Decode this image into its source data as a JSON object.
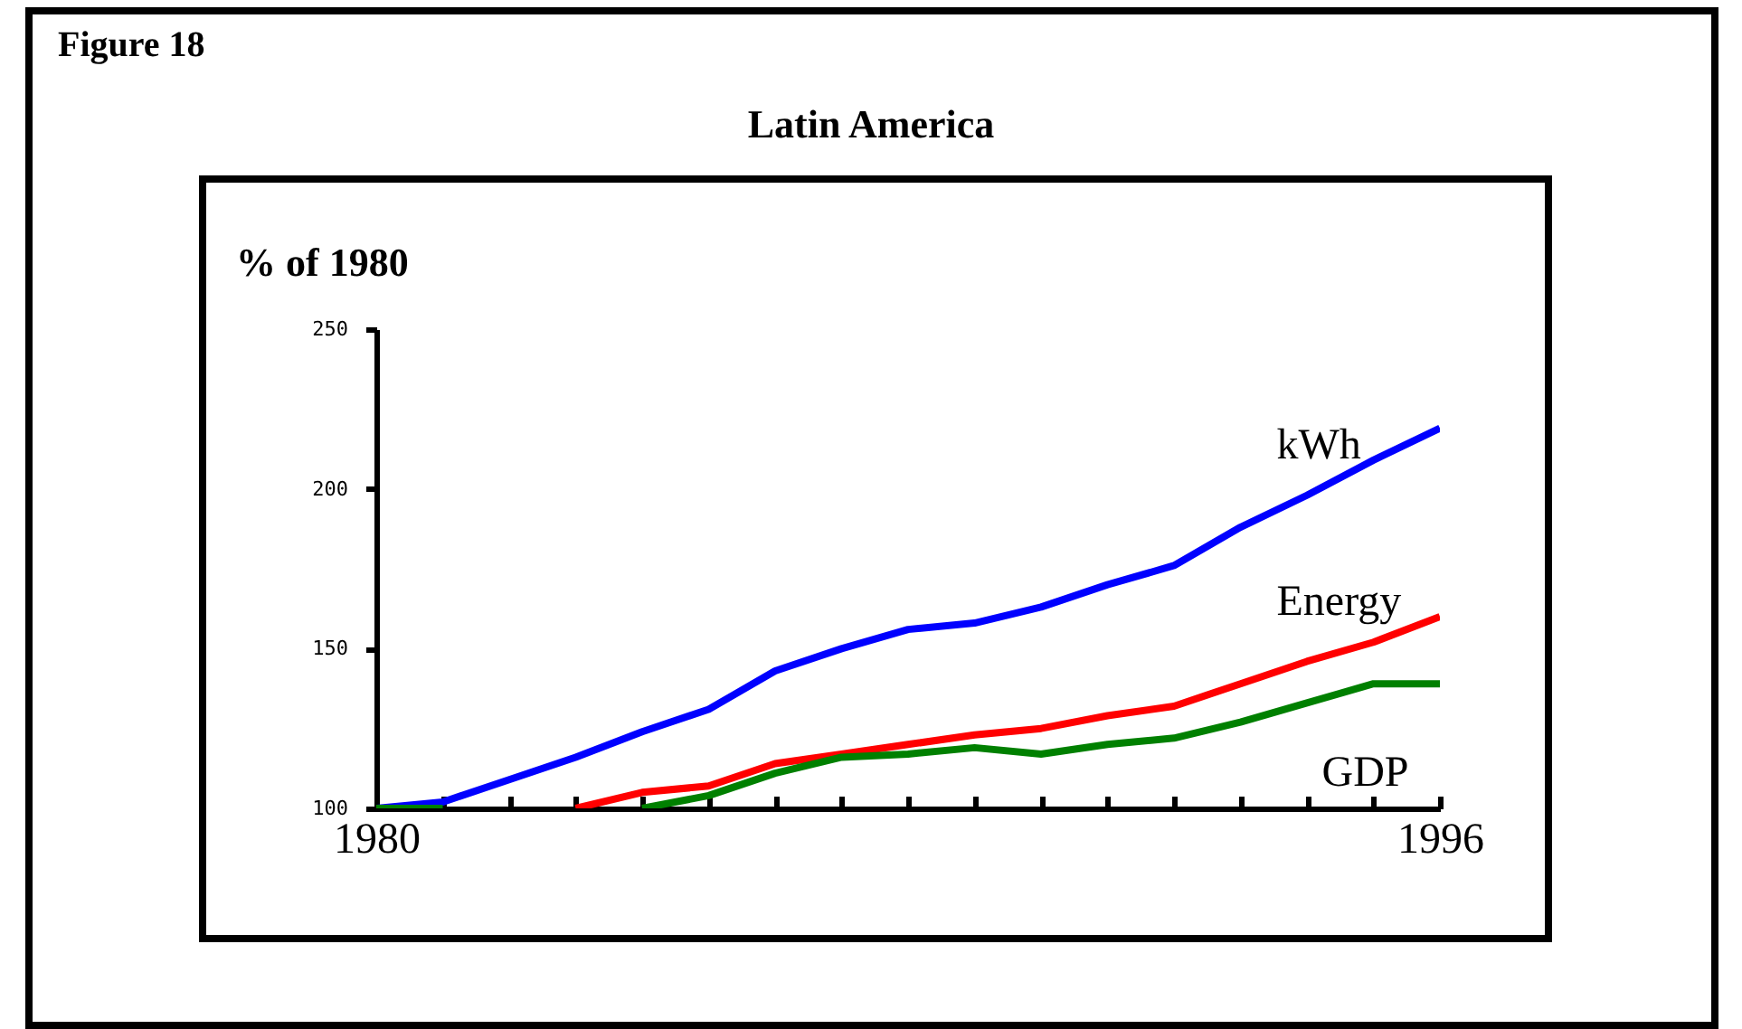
{
  "chart_data": {
    "type": "line",
    "title": "Latin America",
    "ylabel": "% of 1980",
    "annotations": [
      "Figure 18"
    ],
    "x": [
      1980,
      1981,
      1982,
      1983,
      1984,
      1985,
      1986,
      1987,
      1988,
      1989,
      1990,
      1991,
      1992,
      1993,
      1994,
      1995,
      1996
    ],
    "series": [
      {
        "name": "kWh",
        "color": "#0000ff",
        "values": [
          100,
          102,
          109,
          116,
          124,
          131,
          143,
          150,
          156,
          158,
          163,
          170,
          176,
          188,
          198,
          209,
          219
        ]
      },
      {
        "name": "Energy",
        "color": "#ff0000",
        "values": [
          null,
          null,
          null,
          100,
          105,
          107,
          114,
          117,
          120,
          123,
          125,
          129,
          132,
          139,
          146,
          152,
          160
        ]
      },
      {
        "name": "GDP",
        "color": "#008000",
        "values": [
          100,
          100,
          null,
          null,
          100,
          104,
          111,
          116,
          117,
          119,
          117,
          120,
          122,
          127,
          133,
          139,
          139
        ]
      }
    ],
    "xlim": [
      1980,
      1996
    ],
    "xticks": [
      1980,
      {
        "value": 1981,
        "label": null
      },
      {
        "value": 1982,
        "label": null
      },
      {
        "value": 1983,
        "label": null
      },
      {
        "value": 1984,
        "label": null
      },
      {
        "value": 1985,
        "label": null
      },
      {
        "value": 1986,
        "label": null
      },
      {
        "value": 1987,
        "label": null
      },
      {
        "value": 1988,
        "label": null
      },
      {
        "value": 1989,
        "label": null
      },
      {
        "value": 1990,
        "label": null
      },
      {
        "value": 1991,
        "label": null
      },
      {
        "value": 1992,
        "label": null
      },
      {
        "value": 1993,
        "label": null
      },
      {
        "value": 1994,
        "label": null
      },
      {
        "value": 1995,
        "label": null
      },
      1996
    ],
    "ylim": [
      100,
      250
    ],
    "yticks": [
      100,
      150,
      200,
      250
    ],
    "grid": false,
    "legend": false,
    "line_style": "solid",
    "marker": "none"
  }
}
